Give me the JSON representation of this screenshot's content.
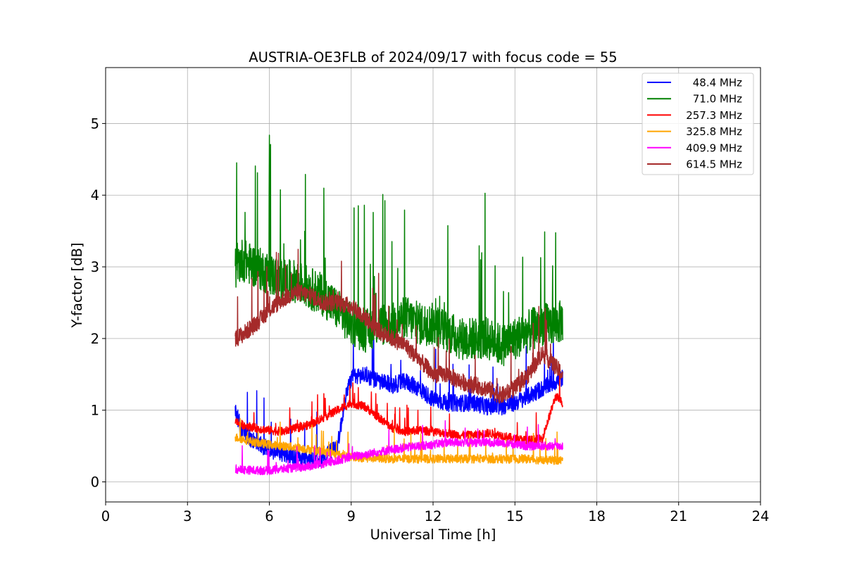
{
  "chart_data": {
    "type": "line",
    "title": "AUSTRIA-OE3FLB of 2024/09/17 with focus code = 55",
    "xlabel": "Universal Time [h]",
    "ylabel": "Y-factor [dB]",
    "xlim": [
      0,
      24
    ],
    "ylim": [
      -0.28,
      5.78
    ],
    "xticks": [
      0,
      3,
      6,
      9,
      12,
      15,
      18,
      21,
      24
    ],
    "yticks": [
      0,
      1,
      2,
      3,
      4,
      5
    ],
    "grid": true,
    "legend_position": "top-right",
    "series": [
      {
        "name": "48.4 MHz",
        "color": "#0000ff",
        "x": [
          4.75,
          5.0,
          5.5,
          6.0,
          6.5,
          7.0,
          7.5,
          8.0,
          8.5,
          8.8,
          9.0,
          9.5,
          10.0,
          10.5,
          11.0,
          11.5,
          12.0,
          12.5,
          13.0,
          13.5,
          14.0,
          14.5,
          15.0,
          15.5,
          16.0,
          16.5,
          16.75
        ],
        "y": [
          1.0,
          0.7,
          0.55,
          0.45,
          0.4,
          0.35,
          0.3,
          0.35,
          0.5,
          1.2,
          1.45,
          1.5,
          1.4,
          1.35,
          1.4,
          1.3,
          1.15,
          1.1,
          1.1,
          1.1,
          1.05,
          1.05,
          1.1,
          1.2,
          1.3,
          1.4,
          1.45
        ],
        "amp": 0.12
      },
      {
        "name": "71.0 MHz",
        "color": "#008000",
        "x": [
          4.75,
          5.0,
          5.5,
          6.0,
          6.5,
          7.0,
          7.5,
          8.0,
          8.5,
          9.0,
          9.5,
          10.0,
          10.5,
          11.0,
          11.5,
          12.0,
          12.5,
          13.0,
          13.5,
          14.0,
          14.5,
          15.0,
          15.5,
          16.0,
          16.5,
          16.75
        ],
        "y": [
          3.0,
          3.1,
          3.0,
          2.9,
          2.8,
          2.8,
          2.7,
          2.6,
          2.4,
          2.2,
          2.1,
          2.2,
          2.2,
          2.3,
          2.2,
          2.2,
          2.1,
          2.0,
          2.0,
          2.0,
          1.9,
          2.0,
          2.1,
          2.2,
          2.2,
          2.25
        ],
        "amp": 0.3
      },
      {
        "name": "257.3 MHz",
        "color": "#ff0000",
        "x": [
          4.75,
          5.0,
          5.5,
          6.0,
          6.5,
          7.0,
          7.5,
          8.0,
          8.5,
          9.0,
          9.5,
          10.0,
          10.5,
          11.0,
          11.5,
          12.0,
          12.5,
          13.0,
          13.5,
          14.0,
          14.5,
          15.0,
          15.5,
          16.0,
          16.5,
          16.75
        ],
        "y": [
          0.85,
          0.8,
          0.75,
          0.72,
          0.7,
          0.75,
          0.8,
          0.9,
          1.0,
          1.1,
          1.05,
          0.9,
          0.75,
          0.7,
          0.72,
          0.7,
          0.68,
          0.65,
          0.65,
          0.68,
          0.65,
          0.6,
          0.58,
          0.6,
          1.2,
          1.1
        ],
        "amp": 0.06
      },
      {
        "name": "325.8 MHz",
        "color": "#ffa500",
        "x": [
          4.75,
          5.0,
          5.5,
          6.0,
          6.5,
          7.0,
          7.5,
          8.0,
          8.5,
          9.0,
          9.5,
          10.0,
          10.5,
          11.0,
          11.5,
          12.0,
          12.5,
          13.0,
          13.5,
          14.0,
          14.5,
          15.0,
          15.5,
          16.0,
          16.5,
          16.75
        ],
        "y": [
          0.62,
          0.6,
          0.55,
          0.52,
          0.5,
          0.48,
          0.45,
          0.42,
          0.38,
          0.35,
          0.33,
          0.33,
          0.32,
          0.32,
          0.32,
          0.32,
          0.32,
          0.32,
          0.32,
          0.32,
          0.32,
          0.32,
          0.32,
          0.3,
          0.3,
          0.3
        ],
        "amp": 0.06
      },
      {
        "name": "409.9 MHz",
        "color": "#ff00ff",
        "x": [
          4.75,
          5.0,
          5.5,
          6.0,
          6.5,
          7.0,
          7.5,
          8.0,
          8.5,
          9.0,
          9.5,
          10.0,
          10.5,
          11.0,
          11.5,
          12.0,
          12.5,
          13.0,
          13.5,
          14.0,
          14.5,
          15.0,
          15.5,
          16.0,
          16.5,
          16.75
        ],
        "y": [
          0.18,
          0.17,
          0.16,
          0.16,
          0.18,
          0.2,
          0.22,
          0.25,
          0.3,
          0.35,
          0.38,
          0.42,
          0.45,
          0.48,
          0.5,
          0.52,
          0.55,
          0.55,
          0.55,
          0.55,
          0.55,
          0.52,
          0.5,
          0.5,
          0.5,
          0.5
        ],
        "amp": 0.06
      },
      {
        "name": "614.5 MHz",
        "color": "#a52a2a",
        "x": [
          4.75,
          5.0,
          5.5,
          6.0,
          6.5,
          7.0,
          7.5,
          8.0,
          8.5,
          9.0,
          9.5,
          10.0,
          10.5,
          11.0,
          11.5,
          12.0,
          12.5,
          13.0,
          13.5,
          14.0,
          14.5,
          15.0,
          15.5,
          16.0,
          16.5,
          16.75
        ],
        "y": [
          2.0,
          2.05,
          2.2,
          2.4,
          2.55,
          2.65,
          2.6,
          2.5,
          2.5,
          2.45,
          2.3,
          2.1,
          2.0,
          1.9,
          1.7,
          1.5,
          1.5,
          1.4,
          1.35,
          1.3,
          1.2,
          1.3,
          1.5,
          1.8,
          1.6,
          1.5
        ],
        "amp": 0.12
      }
    ]
  }
}
